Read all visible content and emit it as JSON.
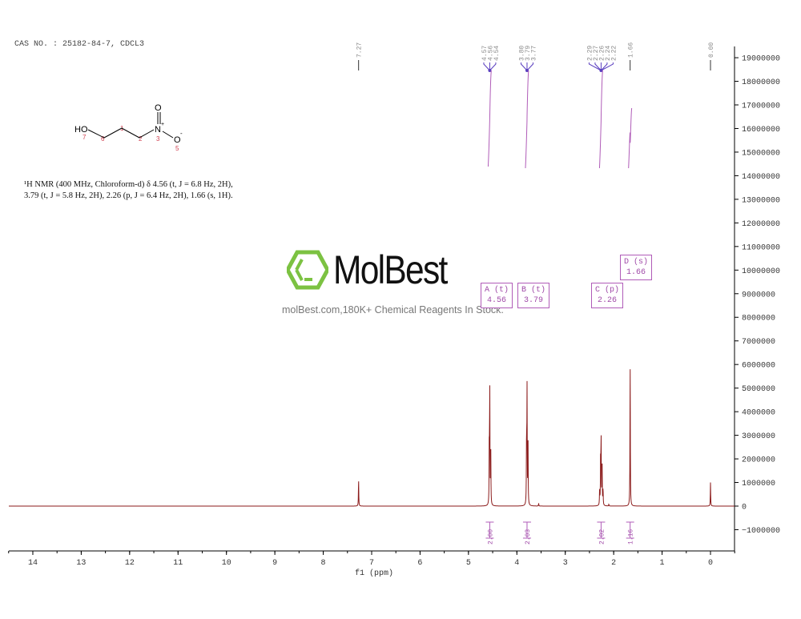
{
  "header": {
    "cas": "CAS NO. : 25182-84-7, CDCL3"
  },
  "nmr_description": {
    "line1": "¹H NMR (400 MHz, Chloroform-d) δ 4.56 (t, J = 6.8 Hz, 2H),",
    "line2": "3.79 (t, J = 5.8 Hz, 2H), 2.26 (p, J = 6.4 Hz, 2H), 1.66 (s, 1H)."
  },
  "structure": {
    "atoms": [
      "HO",
      "O",
      "N",
      "+",
      "O",
      "-"
    ],
    "numbers": [
      "7",
      "6",
      "1",
      "2",
      "3",
      "5"
    ]
  },
  "watermark": {
    "logo": "MolBest",
    "tagline": "molBest.com,180K+ Chemical Reagents In Stock."
  },
  "chart_data": {
    "type": "line",
    "xlabel": "f1 (ppm)",
    "xlim": [
      14.5,
      -0.5
    ],
    "ylim": [
      -1700000,
      19500000
    ],
    "x_ticks": [
      14,
      13,
      12,
      11,
      10,
      9,
      8,
      7,
      6,
      5,
      4,
      3,
      2,
      1,
      0
    ],
    "y_ticks": [
      -1000000,
      0,
      1000000,
      2000000,
      3000000,
      4000000,
      5000000,
      6000000,
      7000000,
      8000000,
      9000000,
      10000000,
      11000000,
      12000000,
      13000000,
      14000000,
      15000000,
      16000000,
      17000000,
      18000000,
      19000000
    ],
    "peaks": [
      {
        "ppm": 7.27,
        "height": 1150000
      },
      {
        "ppm": 4.57,
        "height": 2600000
      },
      {
        "ppm": 4.56,
        "height": 5000000
      },
      {
        "ppm": 4.54,
        "height": 2600000
      },
      {
        "ppm": 3.8,
        "height": 2800000
      },
      {
        "ppm": 3.79,
        "height": 4900000
      },
      {
        "ppm": 3.77,
        "height": 2800000
      },
      {
        "ppm": 3.55,
        "height": 120000
      },
      {
        "ppm": 2.29,
        "height": 700000
      },
      {
        "ppm": 2.27,
        "height": 2000000
      },
      {
        "ppm": 2.26,
        "height": 2900000
      },
      {
        "ppm": 2.24,
        "height": 2000000
      },
      {
        "ppm": 2.22,
        "height": 700000
      },
      {
        "ppm": 2.1,
        "height": 80000
      },
      {
        "ppm": 1.66,
        "height": 6200000
      },
      {
        "ppm": 0.0,
        "height": 1000000
      }
    ],
    "peak_labels": [
      {
        "group": [
          "4.57",
          "4.56",
          "4.54"
        ],
        "center": 4.56
      },
      {
        "group": [
          "3.80",
          "3.79",
          "3.77"
        ],
        "center": 3.79
      },
      {
        "group": [
          "2.29",
          "2.27",
          "2.26",
          "2.24",
          "2.22"
        ],
        "center": 2.26
      },
      {
        "group": [
          "1.66"
        ],
        "center": 1.66
      },
      {
        "group": [
          "7.27"
        ],
        "center": 7.27
      },
      {
        "group": [
          "0.00"
        ],
        "center": 0.0
      }
    ],
    "multiplets": [
      {
        "label": "A (t)",
        "value": "4.56"
      },
      {
        "label": "B (t)",
        "value": "3.79"
      },
      {
        "label": "C (p)",
        "value": "2.26"
      },
      {
        "label": "D (s)",
        "value": "1.66"
      }
    ],
    "integrals": [
      {
        "ppm": 4.56,
        "value": "2.00"
      },
      {
        "ppm": 3.79,
        "value": "2.03"
      },
      {
        "ppm": 2.26,
        "value": "2.02"
      },
      {
        "ppm": 1.66,
        "value": "1.16"
      }
    ],
    "colors": {
      "spectrum": "#8b1a1a",
      "annotations": "#a04aa8",
      "peak_label_lines": "#5a3fbf"
    }
  }
}
